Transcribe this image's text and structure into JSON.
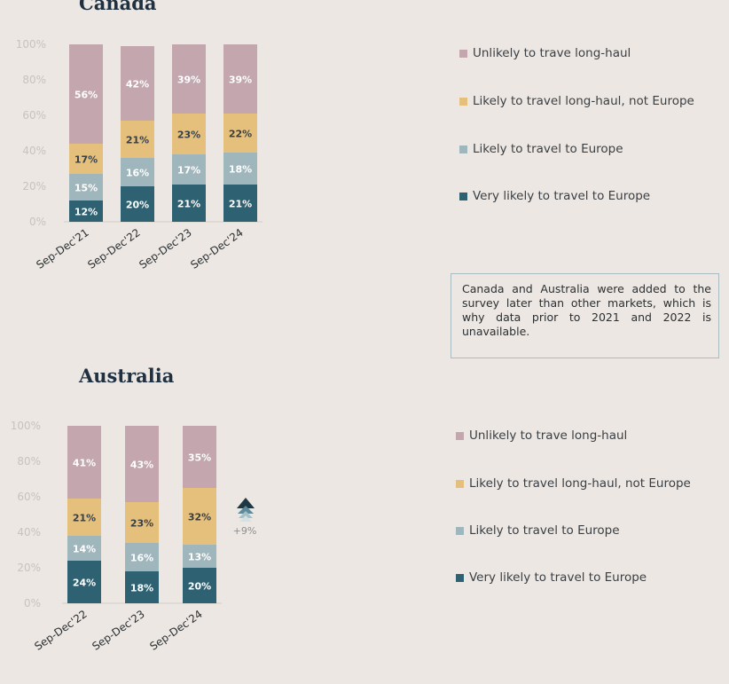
{
  "chart_data": [
    {
      "type": "bar",
      "stacked": true,
      "title": "Canada",
      "categories": [
        "Sep-Dec'21",
        "Sep-Dec'22",
        "Sep-Dec'23",
        "Sep-Dec'24"
      ],
      "series": [
        {
          "name": "Very likely to travel to Europe",
          "values": [
            12,
            20,
            21,
            21
          ],
          "color": "#2e6273"
        },
        {
          "name": "Likely to travel to Europe",
          "values": [
            15,
            16,
            17,
            18
          ],
          "color": "#9fb6bd"
        },
        {
          "name": "Likely to travel long-haul, not Europe",
          "values": [
            17,
            21,
            23,
            22
          ],
          "color": "#e5c07c"
        },
        {
          "name": "Unlikely to trave long-haul",
          "values": [
            56,
            42,
            39,
            39
          ],
          "color": "#c3a6ae"
        }
      ],
      "yticks": [
        "100%",
        "80%",
        "60%",
        "40%",
        "20%",
        "0%"
      ],
      "ylim": [
        0,
        100
      ],
      "legend_position": "right"
    },
    {
      "type": "bar",
      "stacked": true,
      "title": "Australia",
      "categories": [
        "Sep-Dec'22",
        "Sep-Dec'23",
        "Sep-Dec'24"
      ],
      "series": [
        {
          "name": "Very likely to travel to Europe",
          "values": [
            24,
            18,
            20
          ],
          "color": "#2e6273"
        },
        {
          "name": "Likely to travel to Europe",
          "values": [
            14,
            16,
            13
          ],
          "color": "#9fb6bd"
        },
        {
          "name": "Likely to travel long-haul, not Europe",
          "values": [
            21,
            23,
            32
          ],
          "color": "#e5c07c"
        },
        {
          "name": "Unlikely to trave long-haul",
          "values": [
            41,
            43,
            35
          ],
          "color": "#c3a6ae"
        }
      ],
      "yticks": [
        "100%",
        "80%",
        "60%",
        "40%",
        "20%",
        "0%"
      ],
      "ylim": [
        0,
        100
      ],
      "legend_position": "right",
      "annotation": "+9%"
    }
  ],
  "legend_labels": [
    "Unlikely to trave long-haul",
    "Likely to travel long-haul, not Europe",
    "Likely to travel to Europe",
    "Very likely to travel to Europe"
  ],
  "legend_colors": [
    "#c3a6ae",
    "#e5c07c",
    "#9fb6bd",
    "#2e6273"
  ],
  "note": "Canada and Australia were added to the survey later than other markets, which is why data prior to 2021 and 2022 is unavailable.",
  "increase_icon": "stacked-up-arrow-icon"
}
